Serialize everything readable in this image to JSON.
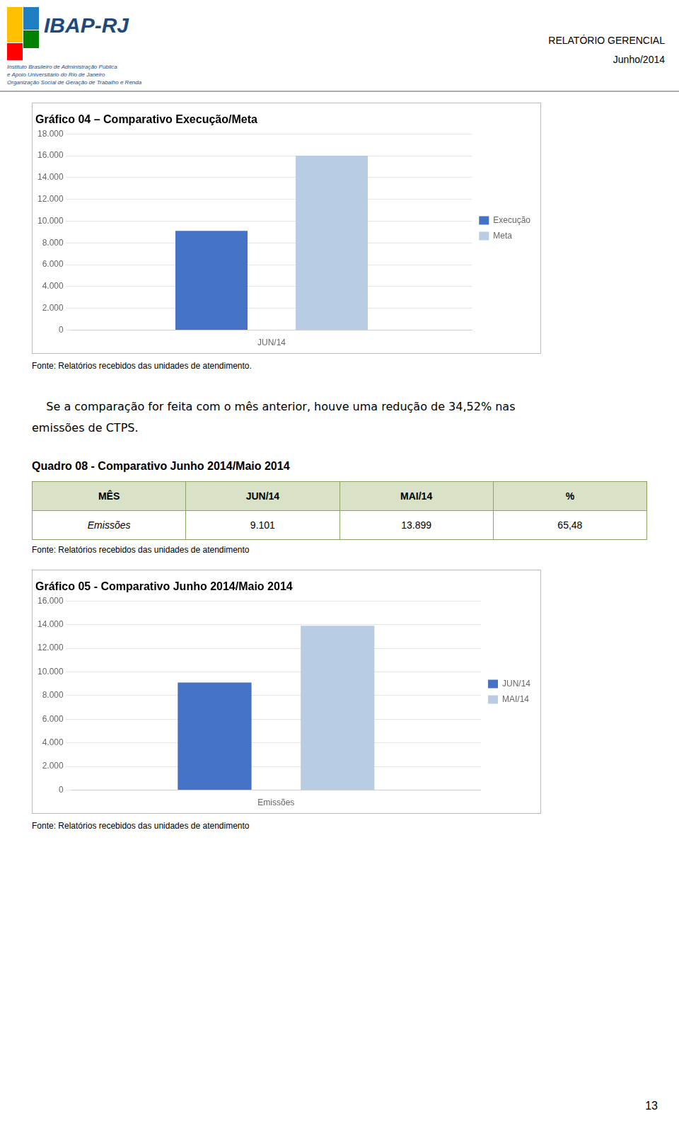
{
  "logo": {
    "name": "IBAP-RJ",
    "lines": [
      "Instituto Brasileiro de Administração Pública",
      "e Apoio Universitário do Rio de Janeiro",
      "Organização Social de Geração de Trabalho e Renda"
    ],
    "colors": [
      "#FFC000",
      "#FF0000",
      "#1F7EC2",
      "#008000"
    ],
    "text_color": "#1F497D"
  },
  "report_title": [
    "RELATÓRIO GERENCIAL",
    "Junho/2014"
  ],
  "chart_data": [
    {
      "type": "bar",
      "title": "Gráfico 04 – Comparativo Execução/Meta",
      "categories": [
        "JUN/14"
      ],
      "series": [
        {
          "name": "Execução",
          "color": "#4472C4",
          "values": [
            9101
          ]
        },
        {
          "name": "Meta",
          "color": "#B8CCE4",
          "values": [
            16000
          ]
        }
      ],
      "ylim": [
        0,
        18000
      ],
      "yticks": [
        0,
        {
          "value": 2000,
          "label": "2.000"
        },
        {
          "value": 4000,
          "label": "4.000"
        },
        {
          "value": 6000,
          "label": "6.000"
        },
        {
          "value": 8000,
          "label": "8.000"
        },
        {
          "value": 10000,
          "label": "10.000"
        },
        {
          "value": 12000,
          "label": "12.000"
        },
        {
          "value": 14000,
          "label": "14.000"
        },
        {
          "value": 16000,
          "label": "16.000"
        },
        {
          "value": 18000,
          "label": "18.000"
        }
      ],
      "grid": true,
      "legend": "right",
      "source": "Fonte: Relatórios recebidos das unidades de atendimento."
    },
    {
      "type": "bar",
      "title": "Gráfico 05 - Comparativo Junho 2014/Maio 2014",
      "categories": [
        "Emissões"
      ],
      "series": [
        {
          "name": "JUN/14",
          "color": "#4472C4",
          "values": [
            9101
          ]
        },
        {
          "name": "MAI/14",
          "color": "#B8CCE4",
          "values": [
            13899
          ]
        }
      ],
      "ylim": [
        0,
        16000
      ],
      "yticks": [
        0,
        {
          "value": 2000,
          "label": "2.000"
        },
        {
          "value": 4000,
          "label": "4.000"
        },
        {
          "value": 6000,
          "label": "6.000"
        },
        {
          "value": 8000,
          "label": "8.000"
        },
        {
          "value": 10000,
          "label": "10.000"
        },
        {
          "value": 12000,
          "label": "12.000"
        },
        {
          "value": 14000,
          "label": "14.000"
        },
        {
          "value": 16000,
          "label": "16.000"
        }
      ],
      "grid": true,
      "legend": "right",
      "source": "Fonte: Relatórios recebidos das unidades de atendimento"
    }
  ],
  "paragraph": [
    "    Se a comparação for feita com o mês anterior, houve uma redução de 34,52% nas",
    "emissões de CTPS."
  ],
  "table": {
    "title": "Quadro 08 - Comparativo Junho 2014/Maio 2014",
    "header": [
      "MÊS",
      "JUN/14",
      "MAI/14",
      "%"
    ],
    "rows": [
      [
        "Emissões",
        "9.101",
        "13.899",
        "65,48"
      ]
    ],
    "header_color": "#D9E2C6",
    "row_color": "#ffffff",
    "border_color": "#8BA462",
    "source": "Fonte: Relatórios recebidos das unidades de atendimento"
  },
  "page_number": "13"
}
